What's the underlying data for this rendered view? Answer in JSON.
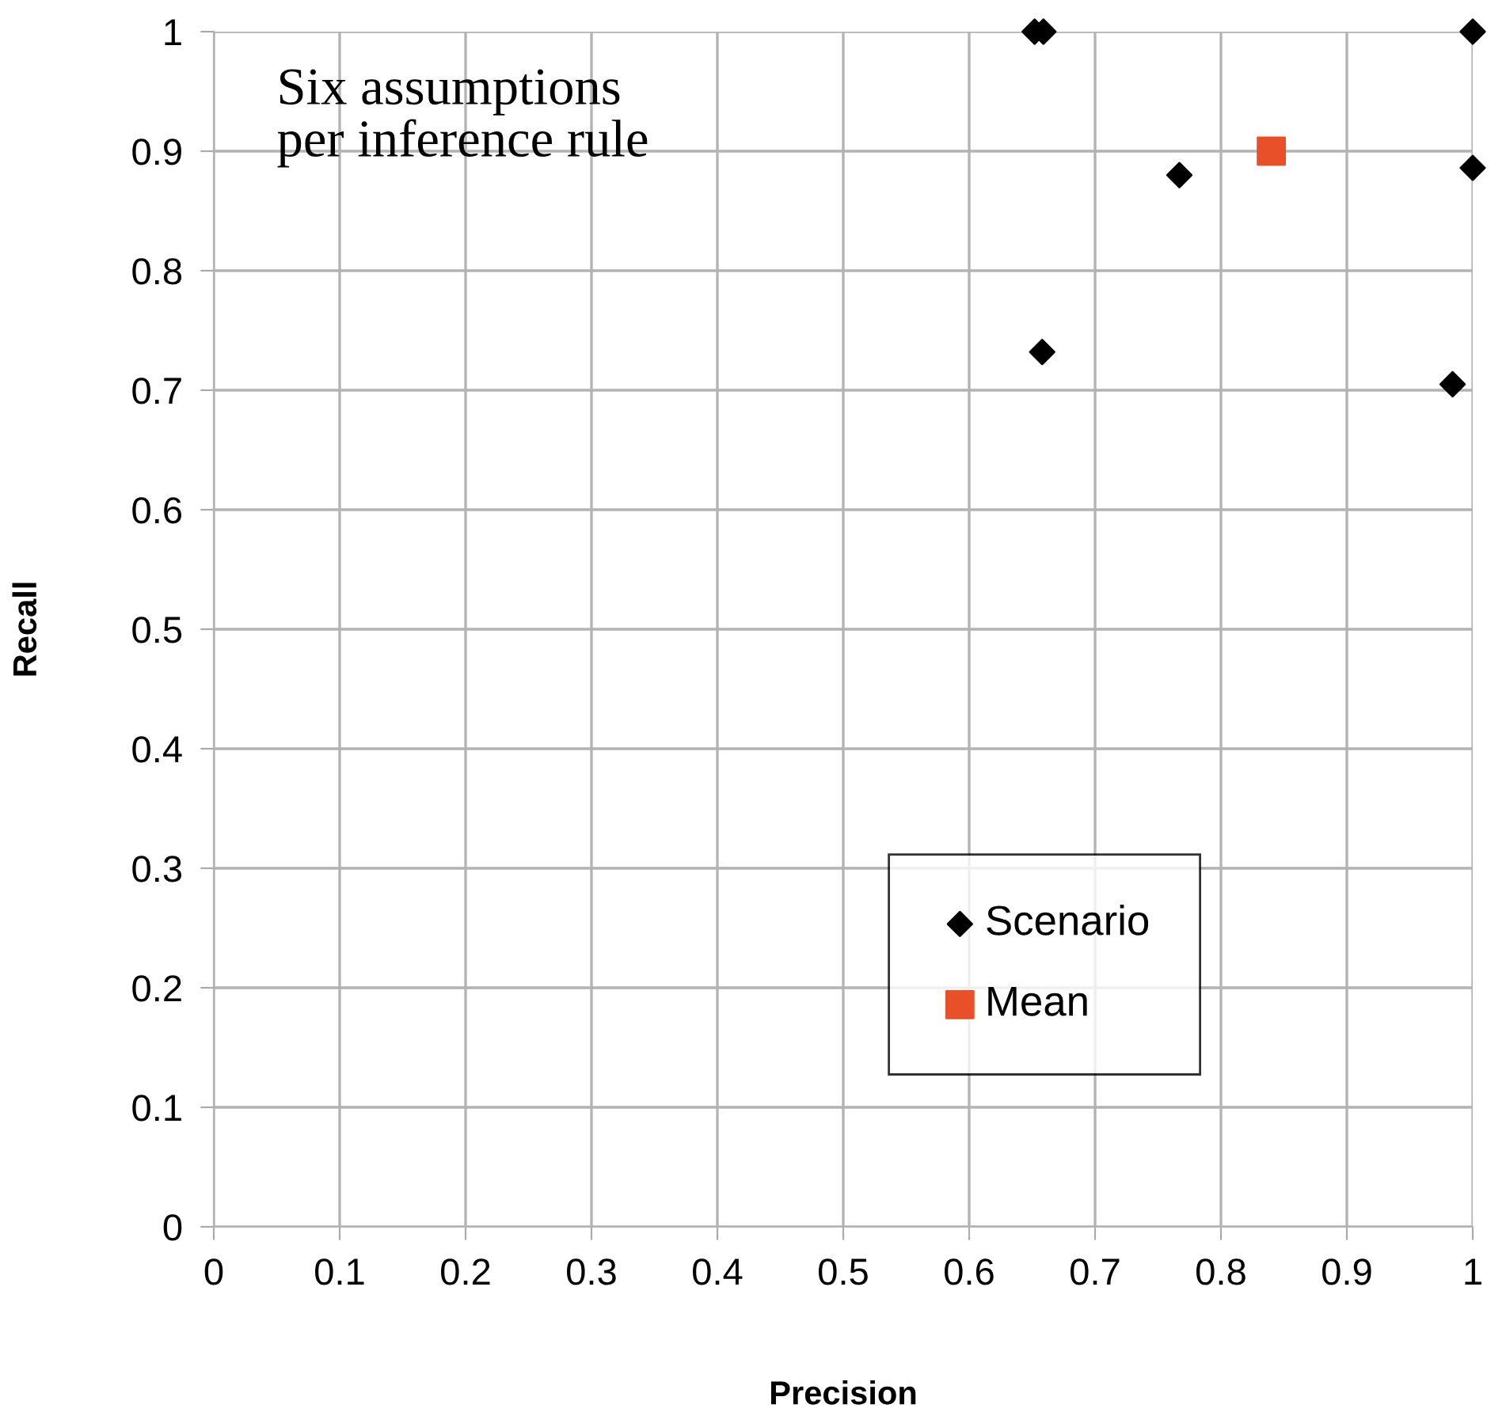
{
  "chart_data": {
    "type": "scatter",
    "xlabel": "Precision",
    "ylabel": "Recall",
    "annotations": [
      "Six assumptions\nper inference rule"
    ],
    "series": [
      {
        "name": "Scenario",
        "color": "#000000",
        "marker": "diamond",
        "x": [
          0.652,
          0.659,
          1.0,
          0.767,
          1.0,
          0.658,
          0.984
        ],
        "values": [
          1.0,
          1.0,
          1.0,
          0.88,
          0.886,
          0.732,
          0.705
        ]
      },
      {
        "name": "Mean",
        "color": "#e8502a",
        "marker": "square",
        "x": [
          0.84
        ],
        "values": [
          0.9
        ]
      }
    ],
    "xlim": [
      0,
      1
    ],
    "ylim": [
      0,
      1
    ],
    "xticks": [
      0,
      0.1,
      0.2,
      0.3,
      0.4,
      0.5,
      0.6,
      0.7,
      0.8,
      0.9,
      1
    ],
    "yticks": [
      0,
      0.1,
      0.2,
      0.3,
      0.4,
      0.5,
      0.6,
      0.7,
      0.8,
      0.9,
      1
    ],
    "grid": true,
    "legend": "bottom right"
  }
}
